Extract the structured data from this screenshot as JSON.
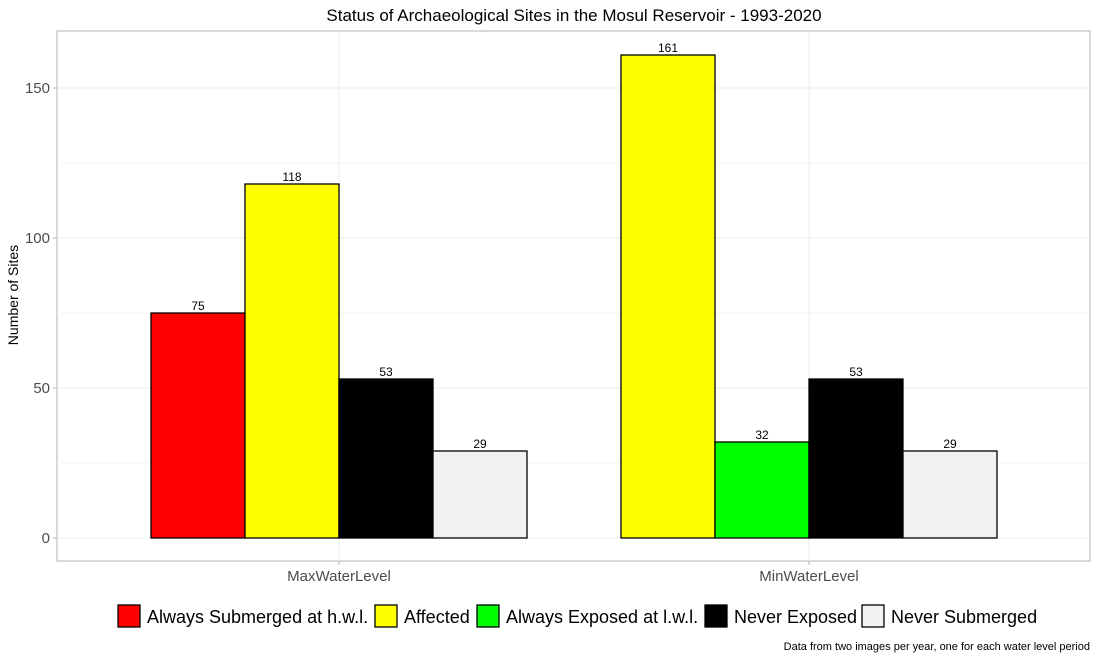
{
  "chart_data": {
    "type": "bar",
    "title": "Status of Archaeological Sites in the Mosul Reservoir - 1993-2020",
    "xlabel": "",
    "ylabel": "Number of Sites",
    "caption": "Data from two images per year, one for each water level period",
    "ylim": [
      0,
      170
    ],
    "yticks": [
      0,
      50,
      100,
      150
    ],
    "grid": true,
    "legend_position": "bottom",
    "categories": [
      "MaxWaterLevel",
      "MinWaterLevel"
    ],
    "series": [
      {
        "name": "Always Submerged at h.w.l.",
        "color": "#ff0000",
        "values": [
          75,
          null
        ]
      },
      {
        "name": "Affected",
        "color": "#ffff00",
        "values": [
          118,
          161
        ]
      },
      {
        "name": "Always Exposed at l.w.l.",
        "color": "#00ff00",
        "values": [
          null,
          32
        ]
      },
      {
        "name": "Never Exposed",
        "color": "#000000",
        "values": [
          53,
          53
        ]
      },
      {
        "name": "Never Submerged",
        "color": "#f2f2f2",
        "values": [
          29,
          29
        ]
      }
    ]
  }
}
